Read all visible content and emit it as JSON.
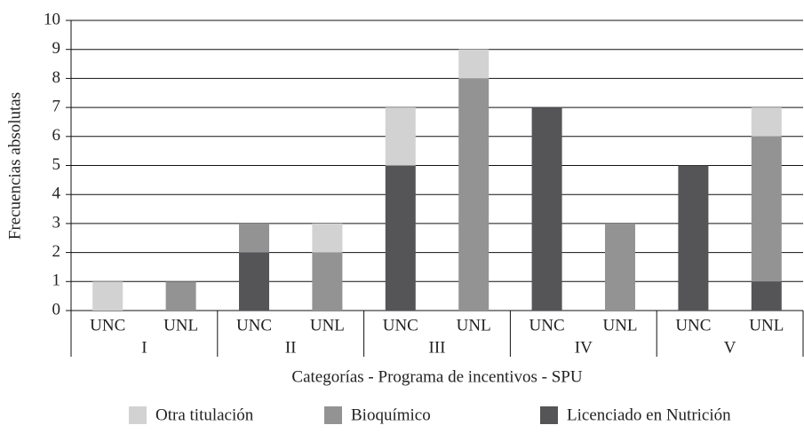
{
  "chart_data": {
    "type": "stacked_bar",
    "xlabel": "Categorías - Programa de incentivos - SPU",
    "ylabel": "Frecuencias absolutas",
    "categories": [
      "UNC",
      "UNL",
      "UNC",
      "UNL",
      "UNC",
      "UNL",
      "UNC",
      "UNL",
      "UNC",
      "UNL"
    ],
    "groups": [
      "I",
      "II",
      "III",
      "IV",
      "V"
    ],
    "series": [
      {
        "name": "Otra titulación",
        "color": "#d2d2d2",
        "values": [
          1,
          0,
          0,
          1,
          2,
          1,
          0,
          0,
          0,
          1
        ]
      },
      {
        "name": "Bioquímico",
        "color": "#939394",
        "values": [
          0,
          1,
          1,
          2,
          0,
          8,
          0,
          3,
          0,
          5
        ]
      },
      {
        "name": "Licenciado en Nutrición",
        "color": "#555557",
        "values": [
          0,
          0,
          2,
          0,
          5,
          0,
          7,
          0,
          5,
          1
        ]
      }
    ],
    "ylim": [
      0,
      10
    ],
    "yticks": [
      0,
      1,
      2,
      3,
      4,
      5,
      6,
      7,
      8,
      9,
      10
    ],
    "grid": true
  }
}
